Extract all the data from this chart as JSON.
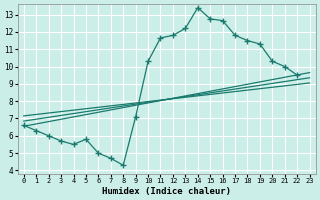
{
  "xlabel": "Humidex (Indice chaleur)",
  "ylabel": "",
  "bg_color": "#cceee8",
  "line_color": "#1a7a6e",
  "grid_color": "#ffffff",
  "xlim": [
    -0.5,
    23.5
  ],
  "ylim": [
    3.8,
    13.6
  ],
  "yticks": [
    4,
    5,
    6,
    7,
    8,
    9,
    10,
    11,
    12,
    13
  ],
  "xticks": [
    0,
    1,
    2,
    3,
    4,
    5,
    6,
    7,
    8,
    9,
    10,
    11,
    12,
    13,
    14,
    15,
    16,
    17,
    18,
    19,
    20,
    21,
    22,
    23
  ],
  "main_x": [
    0,
    1,
    2,
    3,
    4,
    5,
    6,
    7,
    8,
    9,
    10,
    11,
    12,
    13,
    14,
    15,
    16,
    17,
    18,
    19,
    20,
    21,
    22
  ],
  "main_y": [
    6.6,
    6.3,
    6.0,
    5.7,
    5.5,
    5.8,
    5.0,
    4.7,
    4.3,
    7.1,
    10.3,
    11.65,
    11.8,
    12.2,
    13.4,
    12.75,
    12.65,
    11.8,
    11.5,
    11.3,
    10.3,
    10.0,
    9.5
  ],
  "trend1_x": [
    0,
    23
  ],
  "trend1_y": [
    6.55,
    9.65
  ],
  "trend2_x": [
    0,
    23
  ],
  "trend2_y": [
    6.85,
    9.35
  ],
  "trend3_x": [
    0,
    23
  ],
  "trend3_y": [
    7.15,
    9.05
  ]
}
